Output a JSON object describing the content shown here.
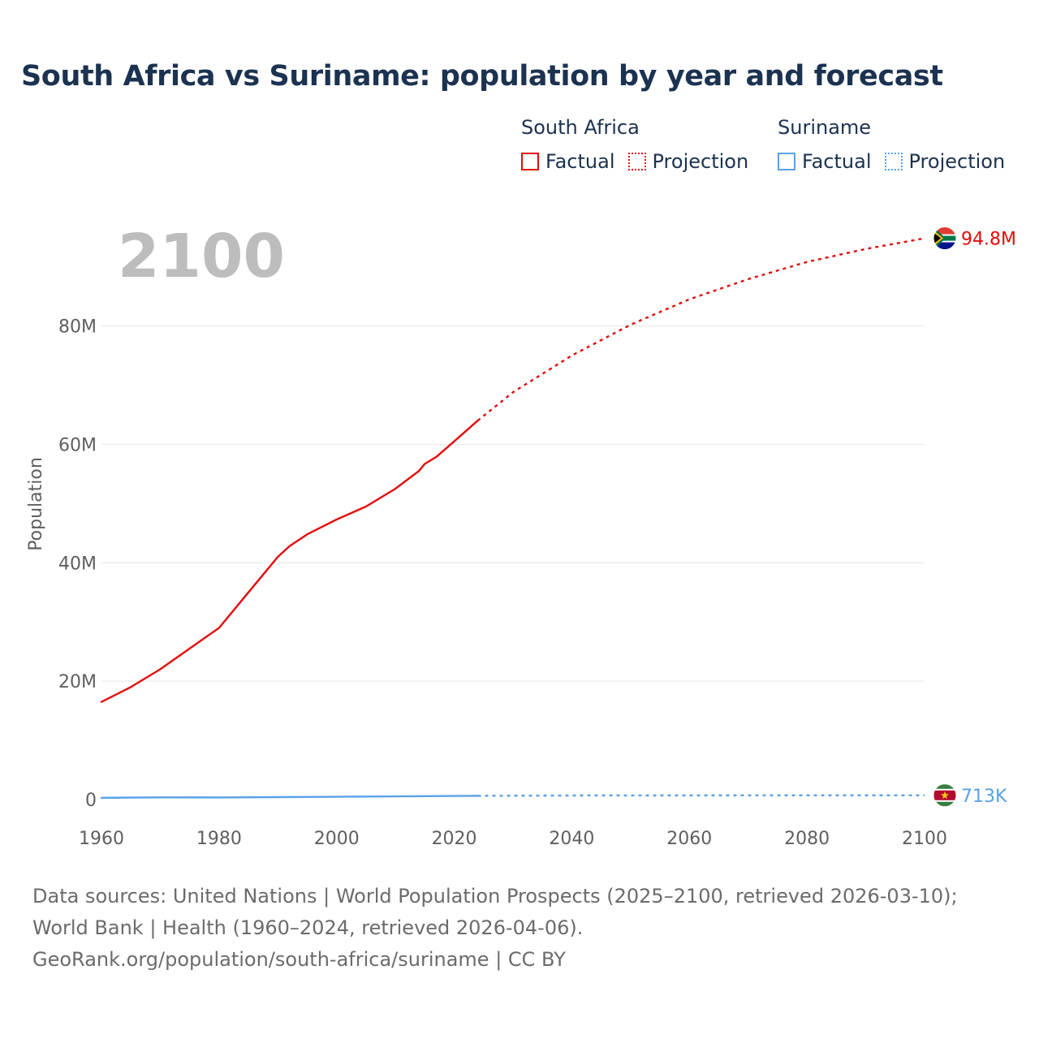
{
  "title": "South Africa vs Suriname: population by year and forecast",
  "colors": {
    "south_africa": "#e30b0b",
    "suriname": "#5aa1e8",
    "grid": "#e6e6e6",
    "axis_text": "#5f5f5f",
    "year_label": "#bdbdbd",
    "title": "#1b3250"
  },
  "legend": [
    {
      "group": "South Africa",
      "items": [
        {
          "label": "Factual",
          "style": "solid",
          "color": "#e30b0b"
        },
        {
          "label": "Projection",
          "style": "dotted",
          "color": "#e30b0b"
        }
      ]
    },
    {
      "group": "Suriname",
      "items": [
        {
          "label": "Factual",
          "style": "solid",
          "color": "#5aa1e8"
        },
        {
          "label": "Projection",
          "style": "dotted",
          "color": "#5aa1e8"
        }
      ]
    }
  ],
  "chart_data": {
    "type": "line",
    "title": "South Africa vs Suriname: population by year and forecast",
    "current_year_label": "2100",
    "xlabel": "",
    "ylabel": "Population",
    "xlim": [
      1960,
      2100
    ],
    "ylim": [
      0,
      80000000
    ],
    "x_ticks": [
      1960,
      1980,
      2000,
      2020,
      2040,
      2060,
      2080,
      2100
    ],
    "y_ticks": [
      {
        "value": 0,
        "label": "0"
      },
      {
        "value": 20000000,
        "label": "20M"
      },
      {
        "value": 40000000,
        "label": "40M"
      },
      {
        "value": 60000000,
        "label": "60M"
      },
      {
        "value": 80000000,
        "label": "80M"
      }
    ],
    "grid": true,
    "series": [
      {
        "name": "South Africa",
        "color": "#e30b0b",
        "end_label": "94.8M",
        "flag_icon": "south-africa-flag-icon",
        "factual": {
          "x": [
            1960,
            1965,
            1970,
            1975,
            1980,
            1985,
            1990,
            1992,
            1995,
            2000,
            2005,
            2010,
            2014,
            2015,
            2017,
            2020,
            2024
          ],
          "y": [
            16500000,
            19000000,
            22000000,
            25500000,
            29000000,
            35000000,
            41000000,
            42800000,
            44800000,
            47300000,
            49500000,
            52500000,
            55500000,
            56700000,
            57900000,
            60500000,
            64000000
          ]
        },
        "projection": {
          "x": [
            2024,
            2030,
            2040,
            2050,
            2060,
            2070,
            2080,
            2090,
            2100
          ],
          "y": [
            64000000,
            68800000,
            75000000,
            80200000,
            84500000,
            87900000,
            90800000,
            93000000,
            94800000
          ]
        }
      },
      {
        "name": "Suriname",
        "color": "#5aa1e8",
        "end_label": "713K",
        "flag_icon": "suriname-flag-icon",
        "factual": {
          "x": [
            1960,
            1970,
            1980,
            1990,
            2000,
            2010,
            2020,
            2024
          ],
          "y": [
            290000,
            370000,
            360000,
            405000,
            470000,
            540000,
            607000,
            634000
          ]
        },
        "projection": {
          "x": [
            2024,
            2040,
            2060,
            2080,
            2100
          ],
          "y": [
            634000,
            680000,
            705000,
            712000,
            713000
          ]
        }
      }
    ]
  },
  "footer": {
    "sources": "Data sources: United Nations | World Population Prospects (2025–2100, retrieved 2026-03-10); World Bank | Health (1960–2024, retrieved 2026-04-06).",
    "attribution": "GeoRank.org/population/south-africa/suriname | CC BY"
  }
}
